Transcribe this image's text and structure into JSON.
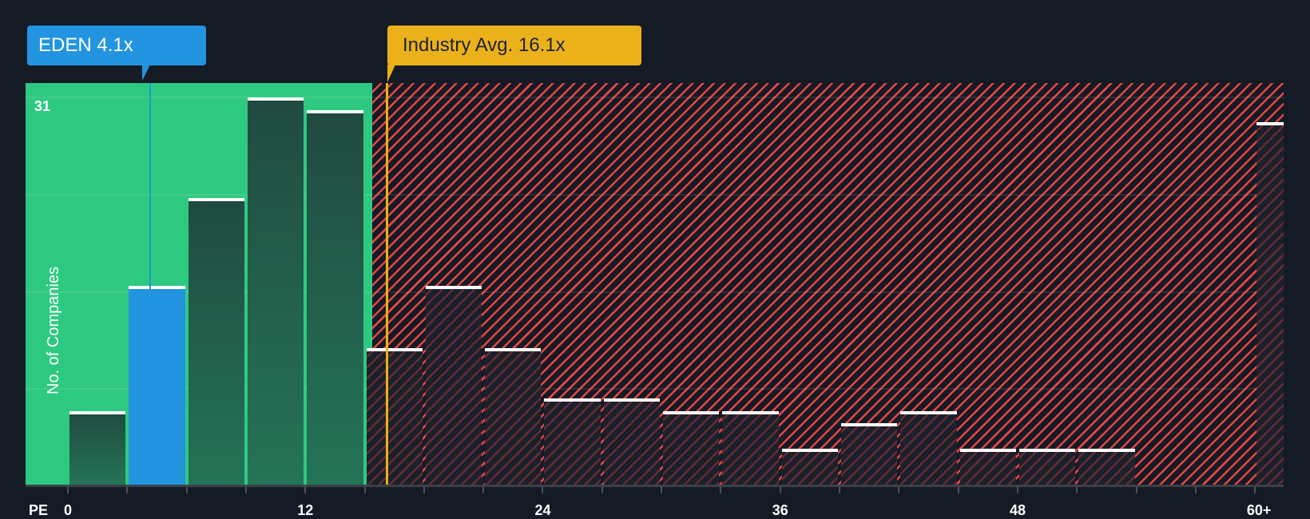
{
  "company_callout": {
    "label": "EDEN 4.1x",
    "ticker": "EDEN",
    "value": 4.1,
    "color": "#2394df"
  },
  "industry_callout": {
    "label": "Industry Avg. 16.1x",
    "value": 16.1,
    "color": "#ebb11b"
  },
  "y_axis": {
    "label": "No. of Companies",
    "max_label": "31"
  },
  "x_axis": {
    "title": "PE",
    "ticks": [
      "0",
      "12",
      "24",
      "36",
      "48",
      "60+"
    ]
  },
  "colors": {
    "background": "#151b24",
    "below_industry_zone": "#2ec981",
    "above_industry_zone_stripe": "#e84545",
    "bar_cap": "#ffffff"
  },
  "chart_data": {
    "type": "bar",
    "title": "",
    "xlabel": "PE",
    "ylabel": "No. of Companies",
    "categories": [
      "0-3",
      "3-6",
      "6-9",
      "9-12",
      "12-15",
      "15-18",
      "18-21",
      "21-24",
      "24-27",
      "27-30",
      "30-33",
      "33-36",
      "36-39",
      "39-42",
      "42-45",
      "45-48",
      "48-51",
      "51-54",
      "54-57",
      "57-60",
      "60+"
    ],
    "values": [
      6,
      16,
      23,
      31,
      30,
      11,
      16,
      11,
      7,
      7,
      6,
      6,
      3,
      5,
      6,
      3,
      3,
      3,
      0,
      0,
      29
    ],
    "highlight_category": "3-6",
    "x_ticks": [
      "0",
      "12",
      "24",
      "36",
      "48",
      "60+"
    ],
    "ylim": [
      0,
      31
    ],
    "grid": true,
    "markers": [
      {
        "name": "EDEN",
        "value": 4.1,
        "label": "EDEN 4.1x"
      },
      {
        "name": "Industry Avg.",
        "value": 16.1,
        "label": "Industry Avg. 16.1x"
      }
    ]
  }
}
